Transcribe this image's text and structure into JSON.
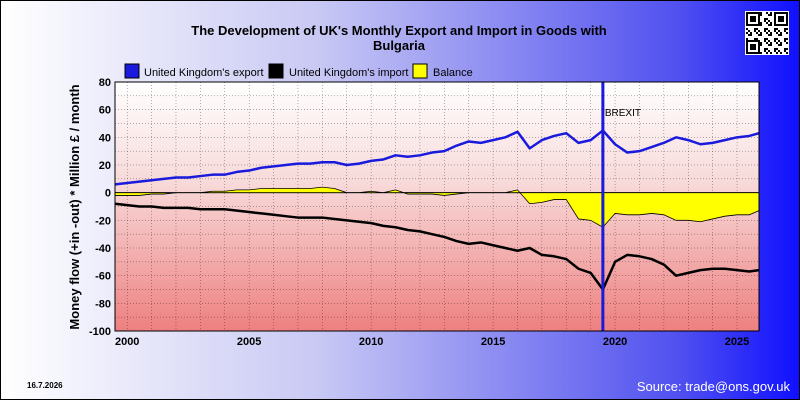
{
  "footer": {
    "date": "16.7.2026",
    "source": "Source: trade@ons.gov.uk"
  },
  "colors": {
    "export": "#1a1adc",
    "import": "#000000",
    "balance": "#ffff00"
  },
  "qr_icon": "qr-code-icon",
  "chart_data": {
    "type": "line",
    "title": "The Development of UK's Monthly Export and Import in Goods with Bulgaria",
    "title_lines": [
      "The Development of UK's Monthly Export and Import in Goods with",
      "Bulgaria"
    ],
    "ylabel": "Money flow (+in -out) * Million £ / month",
    "xlabel": "",
    "xlim": [
      1999.5,
      2025.9
    ],
    "ylim": [
      -100,
      80
    ],
    "x_ticks": [
      2000,
      2005,
      2010,
      2015,
      2020,
      2025
    ],
    "y_ticks": [
      -100,
      -80,
      -60,
      -40,
      -20,
      0,
      20,
      40,
      60,
      80
    ],
    "grid": true,
    "legend": "top-left",
    "annotations": [
      {
        "text": "BREXIT",
        "x": 2019.5
      }
    ],
    "series": [
      {
        "name": "United Kingdom's export",
        "x": [
          1999.5,
          2000,
          2000.5,
          2001,
          2001.5,
          2002,
          2002.5,
          2003,
          2003.5,
          2004,
          2004.5,
          2005,
          2005.5,
          2006,
          2006.5,
          2007,
          2007.5,
          2008,
          2008.5,
          2009,
          2009.5,
          2010,
          2010.5,
          2011,
          2011.5,
          2012,
          2012.5,
          2013,
          2013.5,
          2014,
          2014.5,
          2015,
          2015.5,
          2016,
          2016.5,
          2017,
          2017.5,
          2018,
          2018.5,
          2019,
          2019.5,
          2020,
          2020.5,
          2021,
          2021.5,
          2022,
          2022.5,
          2023,
          2023.5,
          2024,
          2024.5,
          2025,
          2025.5,
          2025.9
        ],
        "values": [
          6,
          7,
          8,
          9,
          10,
          11,
          11,
          12,
          13,
          13,
          15,
          16,
          18,
          19,
          20,
          21,
          21,
          22,
          22,
          20,
          21,
          23,
          24,
          27,
          26,
          27,
          29,
          30,
          34,
          37,
          36,
          38,
          40,
          44,
          32,
          38,
          41,
          43,
          36,
          38,
          45,
          35,
          29,
          30,
          33,
          36,
          40,
          38,
          35,
          36,
          38,
          40,
          41,
          43
        ]
      },
      {
        "name": "United Kingdom's import",
        "x": [
          1999.5,
          2000,
          2000.5,
          2001,
          2001.5,
          2002,
          2002.5,
          2003,
          2003.5,
          2004,
          2004.5,
          2005,
          2005.5,
          2006,
          2006.5,
          2007,
          2007.5,
          2008,
          2008.5,
          2009,
          2009.5,
          2010,
          2010.5,
          2011,
          2011.5,
          2012,
          2012.5,
          2013,
          2013.5,
          2014,
          2014.5,
          2015,
          2015.5,
          2016,
          2016.5,
          2017,
          2017.5,
          2018,
          2018.5,
          2019,
          2019.5,
          2020,
          2020.5,
          2021,
          2021.5,
          2022,
          2022.5,
          2023,
          2023.5,
          2024,
          2024.5,
          2025,
          2025.5,
          2025.9
        ],
        "values": [
          -8,
          -9,
          -10,
          -10,
          -11,
          -11,
          -11,
          -12,
          -12,
          -12,
          -13,
          -14,
          -15,
          -16,
          -17,
          -18,
          -18,
          -18,
          -19,
          -20,
          -21,
          -22,
          -24,
          -25,
          -27,
          -28,
          -30,
          -32,
          -35,
          -37,
          -36,
          -38,
          -40,
          -42,
          -40,
          -45,
          -46,
          -48,
          -55,
          -58,
          -70,
          -50,
          -45,
          -46,
          -48,
          -52,
          -60,
          -58,
          -56,
          -55,
          -55,
          -56,
          -57,
          -56
        ]
      },
      {
        "name": "Balance",
        "x": [
          1999.5,
          2000,
          2000.5,
          2001,
          2001.5,
          2002,
          2002.5,
          2003,
          2003.5,
          2004,
          2004.5,
          2005,
          2005.5,
          2006,
          2006.5,
          2007,
          2007.5,
          2008,
          2008.5,
          2009,
          2009.5,
          2010,
          2010.5,
          2011,
          2011.5,
          2012,
          2012.5,
          2013,
          2013.5,
          2014,
          2014.5,
          2015,
          2015.5,
          2016,
          2016.5,
          2017,
          2017.5,
          2018,
          2018.5,
          2019,
          2019.5,
          2020,
          2020.5,
          2021,
          2021.5,
          2022,
          2022.5,
          2023,
          2023.5,
          2024,
          2024.5,
          2025,
          2025.5,
          2025.9
        ],
        "values": [
          -2,
          -2,
          -2,
          -1,
          -1,
          0,
          0,
          0,
          1,
          1,
          2,
          2,
          3,
          3,
          3,
          3,
          3,
          4,
          3,
          0,
          0,
          1,
          0,
          2,
          -1,
          -1,
          -1,
          -2,
          -1,
          0,
          0,
          0,
          0,
          2,
          -8,
          -7,
          -5,
          -5,
          -19,
          -20,
          -25,
          -15,
          -16,
          -16,
          -15,
          -16,
          -20,
          -20,
          -21,
          -19,
          -17,
          -16,
          -16,
          -13
        ]
      }
    ]
  }
}
